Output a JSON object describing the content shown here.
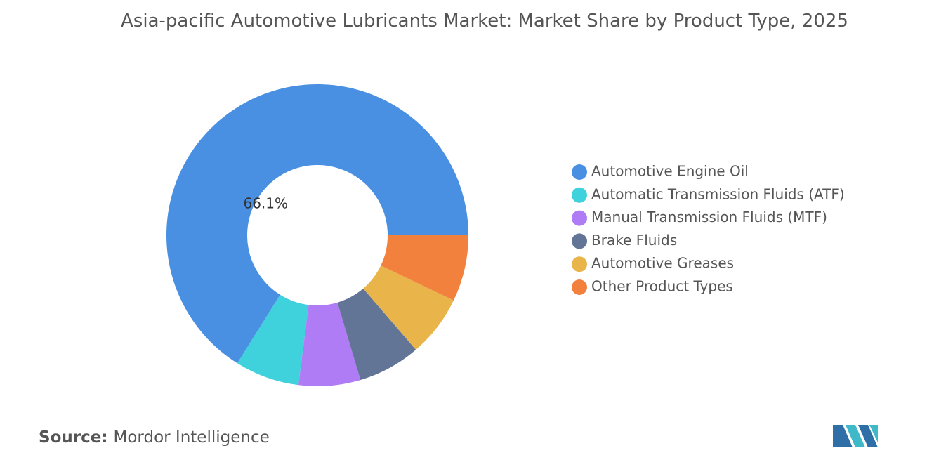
{
  "chart_data": {
    "type": "donut",
    "title": "Asia-pacific Automotive Lubricants Market: Market Share by Product Type, 2025",
    "categories": [
      "Automotive Engine Oil",
      "Automatic Transmission Fluids (ATF)",
      "Manual Transmission Fluids (MTF)",
      "Brake Fluids",
      "Automotive Greases",
      "Other Product Types"
    ],
    "values": [
      66.1,
      6.9,
      6.6,
      6.7,
      6.6,
      7.1
    ],
    "value_labels": [
      "66.1%",
      null,
      null,
      null,
      null,
      null
    ],
    "colors": [
      "#4a90e2",
      "#3fd1dc",
      "#b07cf5",
      "#627596",
      "#e9b54a",
      "#f2813e"
    ],
    "legend": "right",
    "source_label": "Source:",
    "source": "Mordor Intelligence"
  }
}
